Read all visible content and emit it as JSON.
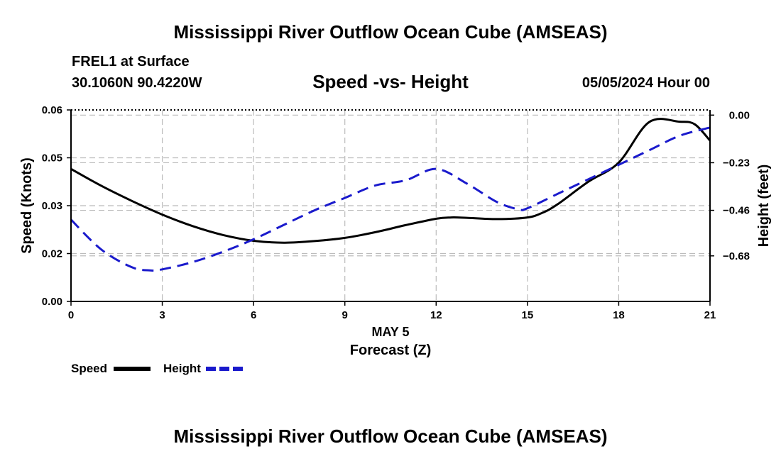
{
  "page": {
    "title": "Mississippi River Outflow Ocean Cube (AMSEAS)",
    "station": "FREL1 at Surface",
    "coords": "30.1060N  90.4220W",
    "subtitle": "Speed -vs- Height",
    "datetime": "05/05/2024 Hour 00",
    "bottom_title": "Mississippi River Outflow Ocean Cube (AMSEAS)"
  },
  "colors": {
    "speed": "#000000",
    "height": "#1a1acc",
    "grid": "#bbbbbb"
  },
  "chart_data": {
    "type": "line",
    "title": "Speed -vs- Height",
    "xlabel_top": "MAY 5",
    "xlabel": "Forecast (Z)",
    "ylabel": "Speed (Knots)",
    "y2label": "Height (feet)",
    "xlim": [
      0,
      21
    ],
    "ylim": [
      0,
      0.06
    ],
    "y2lim": [
      -0.9,
      0.025
    ],
    "x_ticks": [
      0,
      3,
      6,
      9,
      12,
      15,
      18,
      21
    ],
    "x_tick_labels": [
      "0",
      "3",
      "6",
      "9",
      "12",
      "15",
      "18",
      "21"
    ],
    "y_ticks": [
      0,
      0.015,
      0.03,
      0.045,
      0.06
    ],
    "y_tick_labels": [
      "0.00",
      "0.02",
      "0.03",
      "0.05",
      "0.06"
    ],
    "y2_ticks": [
      0.0,
      -0.23,
      -0.46,
      -0.68
    ],
    "y2_tick_labels": [
      "0.00",
      "-0.23",
      "-0.46",
      "-0.68"
    ],
    "grid": true,
    "legend": [
      {
        "name": "Speed",
        "style": "solid"
      },
      {
        "name": "Height",
        "style": "dashed"
      }
    ],
    "series": [
      {
        "name": "Speed",
        "axis": "left",
        "style": "solid",
        "x": [
          0,
          1,
          2,
          3,
          4,
          5,
          6,
          7,
          8,
          9,
          10,
          11,
          12,
          12.5,
          13,
          14,
          15,
          15.5,
          16,
          17,
          18,
          19,
          20,
          20.5,
          21
        ],
        "y": [
          0.0415,
          0.0362,
          0.0315,
          0.0272,
          0.0236,
          0.0208,
          0.019,
          0.0184,
          0.0189,
          0.0199,
          0.0217,
          0.0239,
          0.0259,
          0.0263,
          0.0262,
          0.0258,
          0.0263,
          0.0278,
          0.0305,
          0.0375,
          0.0435,
          0.0562,
          0.0563,
          0.0555,
          0.0504
        ]
      },
      {
        "name": "Height",
        "axis": "right",
        "style": "dashed",
        "x": [
          0,
          1,
          2,
          2.6,
          3,
          4,
          5,
          6,
          7,
          8,
          9,
          10,
          11,
          12,
          13,
          14,
          14.7,
          15,
          16,
          17,
          18,
          19,
          20,
          21
        ],
        "y": [
          -0.505,
          -0.65,
          -0.735,
          -0.75,
          -0.745,
          -0.71,
          -0.66,
          -0.6,
          -0.53,
          -0.46,
          -0.4,
          -0.34,
          -0.315,
          -0.26,
          -0.33,
          -0.42,
          -0.455,
          -0.45,
          -0.38,
          -0.31,
          -0.24,
          -0.17,
          -0.1,
          -0.06
        ]
      }
    ]
  }
}
